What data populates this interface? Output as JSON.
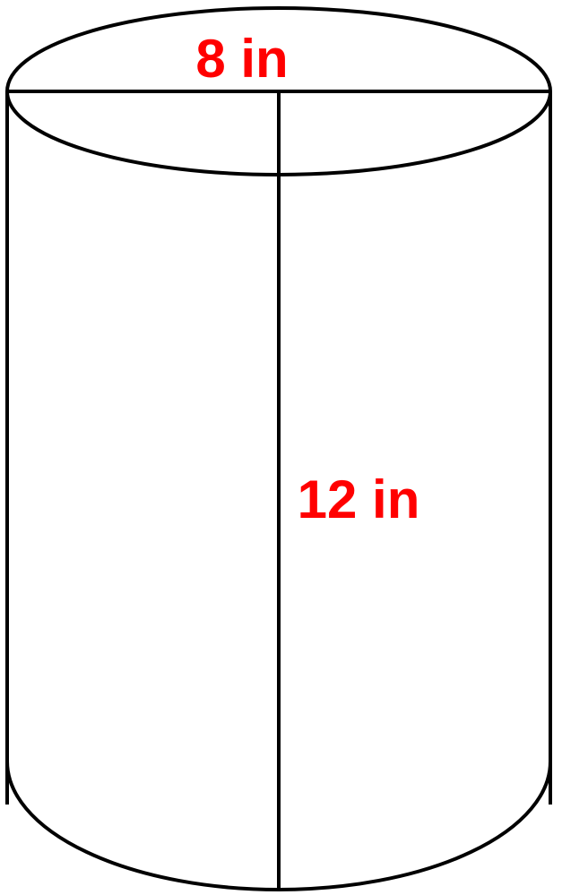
{
  "diagram": {
    "shape": "cylinder",
    "labels": {
      "diameter": "8 in",
      "height": "12 in"
    },
    "colors": {
      "outline": "#000000",
      "label": "#ff0000",
      "background": "#ffffff"
    }
  }
}
